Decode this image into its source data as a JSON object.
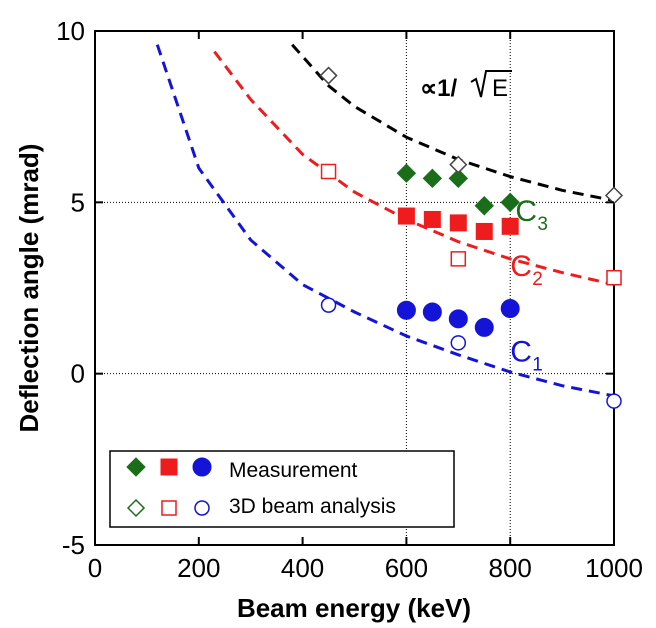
{
  "chart_data": {
    "type": "scatter",
    "xlabel": "Beam energy (keV)",
    "ylabel": "Deflection angle (mrad)",
    "xlim": [
      0,
      1000
    ],
    "ylim": [
      -5,
      10
    ],
    "x_ticks": [
      "0",
      "200",
      "400",
      "600",
      "800",
      "1000"
    ],
    "y_ticks": [
      "-5",
      "0",
      "5",
      "10"
    ],
    "grid": "dotted lines at x=600, x=800, y=0, y=5",
    "legend_placement": "bottom-left",
    "legend": {
      "measurement_label": "Measurement",
      "analysis_label": "3D beam analysis"
    },
    "annotation": {
      "prefix": "∝1/",
      "radicand": "E"
    },
    "colors": {
      "C1": "#1414d8",
      "C2": "#ee1c1c",
      "C3": "#1a6e1a",
      "fit": "#000000"
    },
    "series": [
      {
        "name": "C",
        "sub": "1",
        "color_key": "C1",
        "marker": "circle",
        "measurement": {
          "x": [
            600,
            650,
            700,
            750,
            800
          ],
          "y": [
            1.85,
            1.8,
            1.6,
            1.35,
            1.9
          ]
        },
        "analysis": {
          "x": [
            450,
            700,
            1000
          ],
          "y": [
            2.0,
            0.9,
            -0.8
          ]
        },
        "fit": {
          "x": [
            120,
            200,
            300,
            400,
            500,
            600,
            700,
            800,
            900,
            1000
          ],
          "y": [
            9.6,
            6.0,
            3.9,
            2.6,
            1.8,
            1.1,
            0.55,
            0.05,
            -0.35,
            -0.65
          ]
        }
      },
      {
        "name": "C",
        "sub": "2",
        "color_key": "C2",
        "marker": "square",
        "measurement": {
          "x": [
            600,
            650,
            700,
            750,
            800
          ],
          "y": [
            4.6,
            4.5,
            4.4,
            4.15,
            4.3
          ]
        },
        "analysis": {
          "x": [
            450,
            700,
            1000
          ],
          "y": [
            5.9,
            3.35,
            2.8
          ]
        },
        "fit": {
          "x": [
            230,
            300,
            400,
            500,
            600,
            700,
            800,
            900,
            1000
          ],
          "y": [
            9.4,
            8.0,
            6.4,
            5.3,
            4.5,
            3.85,
            3.35,
            2.95,
            2.6
          ]
        }
      },
      {
        "name": "C",
        "sub": "3",
        "color_key": "C3",
        "marker": "diamond",
        "measurement": {
          "x": [
            600,
            650,
            700,
            750,
            800
          ],
          "y": [
            5.85,
            5.7,
            5.7,
            4.9,
            5.0
          ]
        },
        "analysis": {
          "x": [
            450,
            700,
            1000
          ],
          "y": [
            8.7,
            6.1,
            5.2
          ]
        },
        "fit": {
          "x": [
            380,
            450,
            500,
            600,
            700,
            800,
            900,
            1000
          ],
          "y": [
            9.6,
            8.4,
            7.8,
            6.9,
            6.25,
            5.75,
            5.35,
            5.05
          ]
        }
      }
    ]
  }
}
